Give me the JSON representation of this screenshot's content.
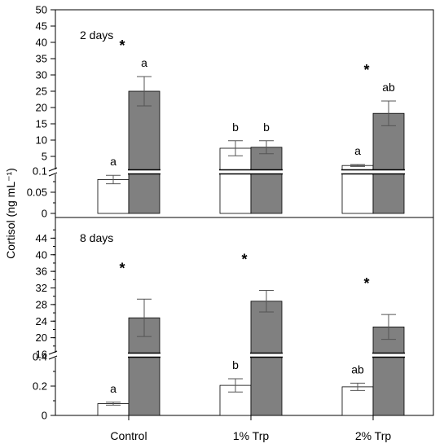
{
  "chart_data": [
    {
      "type": "bar",
      "panel": "2 days",
      "ylabel": "Cortisol (ng mL⁻¹)",
      "categories": [
        "Control",
        "1% Trp",
        "2% Trp"
      ],
      "axis_break": true,
      "lower_axis": {
        "ylim": [
          0,
          0.1
        ],
        "ticks": [
          "0",
          "0.05",
          "0.1"
        ]
      },
      "upper_axis": {
        "ylim": [
          0,
          50
        ],
        "ticks": [
          "5",
          "10",
          "15",
          "20",
          "25",
          "30",
          "35",
          "40",
          "45",
          "50"
        ]
      },
      "series": [
        {
          "fill": "#ffffff",
          "values": [
            0.08,
            7.5,
            2.2
          ],
          "errors": [
            0.01,
            2.3,
            0.3
          ],
          "letters": [
            "a",
            "b",
            "a"
          ]
        },
        {
          "fill": "#808080",
          "values": [
            25,
            7.8,
            18.2
          ],
          "errors": [
            4.5,
            2.0,
            3.8
          ],
          "letters": [
            "a",
            "b",
            "ab"
          ]
        }
      ],
      "significance": [
        "*",
        "",
        "*"
      ]
    },
    {
      "type": "bar",
      "panel": "8 days",
      "ylabel": "Cortisol (ng mL⁻¹)",
      "categories": [
        "Control",
        "1% Trp",
        "2% Trp"
      ],
      "axis_break": true,
      "lower_axis": {
        "ylim": [
          0,
          0.4
        ],
        "ticks": [
          "0",
          "0.2",
          "0.4"
        ]
      },
      "upper_axis": {
        "ylim": [
          16,
          48
        ],
        "ticks": [
          "16",
          "20",
          "24",
          "28",
          "32",
          "36",
          "40",
          "44"
        ]
      },
      "series": [
        {
          "fill": "#ffffff",
          "values": [
            0.08,
            0.205,
            0.195
          ],
          "errors": [
            0.01,
            0.045,
            0.025
          ],
          "letters": [
            "a",
            "b",
            "ab"
          ]
        },
        {
          "fill": "#808080",
          "values": [
            24.8,
            28.8,
            22.6
          ],
          "errors": [
            4.5,
            2.6,
            3.0
          ],
          "letters": [
            "",
            "",
            ""
          ]
        }
      ],
      "significance": [
        "*",
        "*",
        "*"
      ]
    }
  ]
}
